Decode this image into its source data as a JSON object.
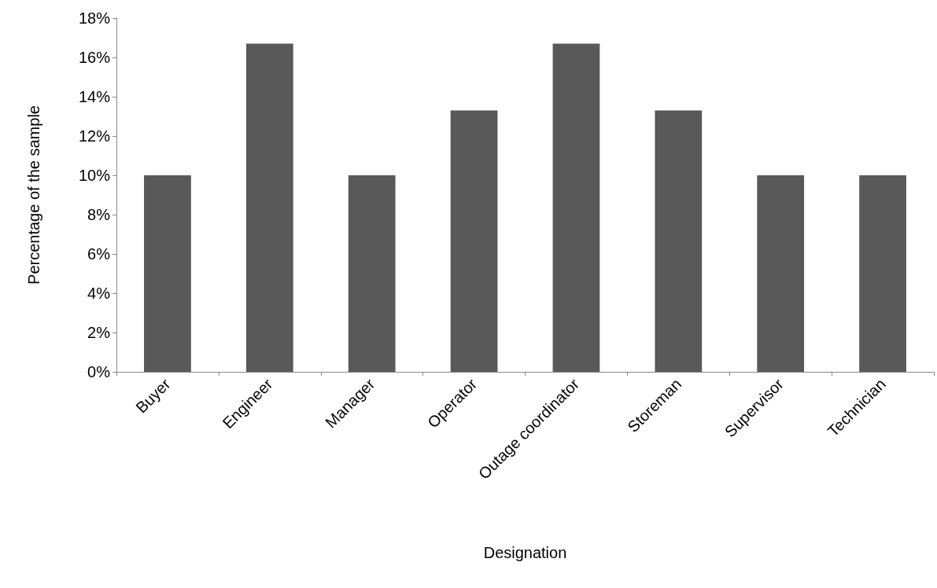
{
  "chart_data": {
    "type": "bar",
    "xlabel": "Designation",
    "ylabel": "Percentage of the sample",
    "categories": [
      "Buyer",
      "Engineer",
      "Manager",
      "Operator",
      "Outage coordinator",
      "Storeman",
      "Supervisor",
      "Technician"
    ],
    "values": [
      10,
      16.7,
      10,
      13.3,
      16.7,
      13.3,
      10,
      10
    ],
    "color": "#595959",
    "ylim": [
      0,
      18
    ],
    "yticks": [
      {
        "value": 0,
        "label": "0%"
      },
      {
        "value": 2,
        "label": "2%"
      },
      {
        "value": 4,
        "label": "4%"
      },
      {
        "value": 6,
        "label": "6%"
      },
      {
        "value": 8,
        "label": "8%"
      },
      {
        "value": 10,
        "label": "10%"
      },
      {
        "value": 12,
        "label": "12%"
      },
      {
        "value": 14,
        "label": "14%"
      },
      {
        "value": 16,
        "label": "16%"
      },
      {
        "value": 18,
        "label": "18%"
      }
    ],
    "grid": false
  }
}
